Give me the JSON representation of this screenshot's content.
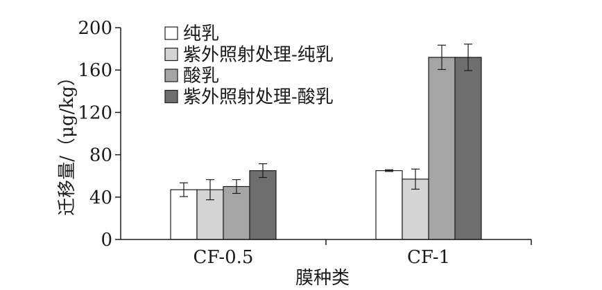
{
  "chart_data": {
    "type": "bar",
    "title": "",
    "xlabel": "膜种类",
    "ylabel": "迁移量/（μg/kg）",
    "categories": [
      "CF-0.5",
      "CF-1"
    ],
    "ylim": [
      0,
      200
    ],
    "yticks": [
      0,
      40,
      80,
      120,
      160,
      200
    ],
    "grid": false,
    "legend_position": "top-left",
    "series": [
      {
        "name": "纯乳",
        "color": "#ffffff",
        "values": [
          47,
          65
        ],
        "errors": [
          6.5,
          0.8
        ]
      },
      {
        "name": "紫外照射处理-纯乳",
        "color": "#d4d4d4",
        "values": [
          47,
          57
        ],
        "errors": [
          9.5,
          9.5
        ]
      },
      {
        "name": "酸乳",
        "color": "#a5a5a5",
        "values": [
          50,
          172
        ],
        "errors": [
          6.5,
          11.5
        ]
      },
      {
        "name": "紫外照射处理-酸乳",
        "color": "#6e6e6e",
        "values": [
          65,
          172
        ],
        "errors": [
          6.5,
          12.5
        ]
      }
    ]
  }
}
